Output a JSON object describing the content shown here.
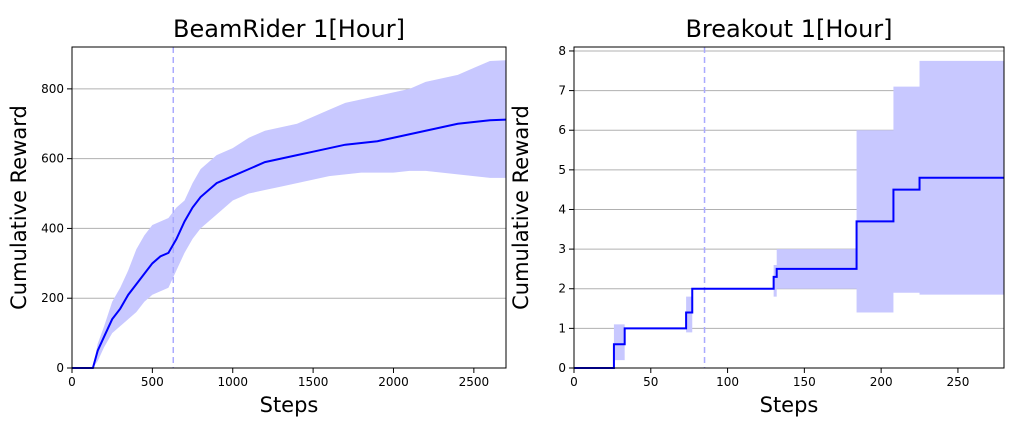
{
  "chart_data": [
    {
      "type": "line",
      "title": "BeamRider 1[Hour]",
      "xlabel": "Steps",
      "ylabel": "Cumulative Reward",
      "xlim": [
        0,
        2700
      ],
      "ylim": [
        0,
        920
      ],
      "xticks": [
        0,
        500,
        1000,
        1500,
        2000,
        2500
      ],
      "yticks": [
        0,
        200,
        400,
        600,
        800
      ],
      "grid": "horizontal",
      "colors": {
        "line": "#0000ff",
        "band": "#c8c8ff",
        "vline": "#aaaaff"
      },
      "vline_x": 630,
      "series": [
        {
          "x": [
            0,
            130,
            160,
            200,
            250,
            300,
            350,
            400,
            450,
            500,
            550,
            600,
            650,
            700,
            750,
            800,
            900,
            1000,
            1100,
            1200,
            1300,
            1400,
            1500,
            1600,
            1700,
            1800,
            1900,
            2000,
            2100,
            2200,
            2300,
            2400,
            2500,
            2600,
            2700
          ],
          "mean": [
            0,
            0,
            50,
            90,
            140,
            170,
            210,
            240,
            270,
            300,
            320,
            330,
            370,
            420,
            460,
            490,
            530,
            550,
            570,
            590,
            600,
            610,
            620,
            630,
            640,
            645,
            650,
            660,
            670,
            680,
            690,
            700,
            705,
            710,
            712
          ],
          "upper": [
            0,
            0,
            70,
            120,
            190,
            230,
            280,
            340,
            380,
            410,
            420,
            430,
            460,
            480,
            530,
            570,
            610,
            630,
            660,
            680,
            690,
            700,
            720,
            740,
            760,
            770,
            780,
            790,
            800,
            820,
            830,
            840,
            860,
            880,
            882
          ],
          "lower": [
            0,
            0,
            20,
            60,
            100,
            120,
            140,
            160,
            190,
            210,
            220,
            230,
            280,
            330,
            370,
            400,
            440,
            480,
            500,
            510,
            520,
            530,
            540,
            550,
            555,
            560,
            560,
            560,
            565,
            565,
            560,
            555,
            550,
            545,
            545
          ]
        }
      ]
    },
    {
      "type": "line",
      "title": "Breakout 1[Hour]",
      "xlabel": "Steps",
      "ylabel": "Cumulative Reward",
      "xlim": [
        0,
        280
      ],
      "ylim": [
        0,
        8.1
      ],
      "xticks": [
        0,
        50,
        100,
        150,
        200,
        250
      ],
      "yticks": [
        0,
        1,
        2,
        3,
        4,
        5,
        6,
        7,
        8
      ],
      "grid": "horizontal",
      "colors": {
        "line": "#0000ff",
        "band": "#c8c8ff",
        "vline": "#aaaaff"
      },
      "vline_x": 85,
      "series": [
        {
          "x": [
            0,
            26,
            33,
            73,
            77,
            130,
            132,
            184,
            208,
            225,
            280
          ],
          "mean": [
            0,
            0.6,
            1.0,
            1.4,
            2.0,
            2.3,
            2.5,
            3.7,
            4.5,
            4.8,
            4.8
          ],
          "upper": [
            0,
            1.1,
            1.0,
            1.8,
            2.0,
            2.6,
            3.0,
            6.0,
            7.1,
            7.75,
            7.75
          ],
          "lower": [
            0,
            0.2,
            1.0,
            0.9,
            2.0,
            1.8,
            2.0,
            1.4,
            1.9,
            1.85,
            1.85
          ]
        }
      ]
    }
  ]
}
